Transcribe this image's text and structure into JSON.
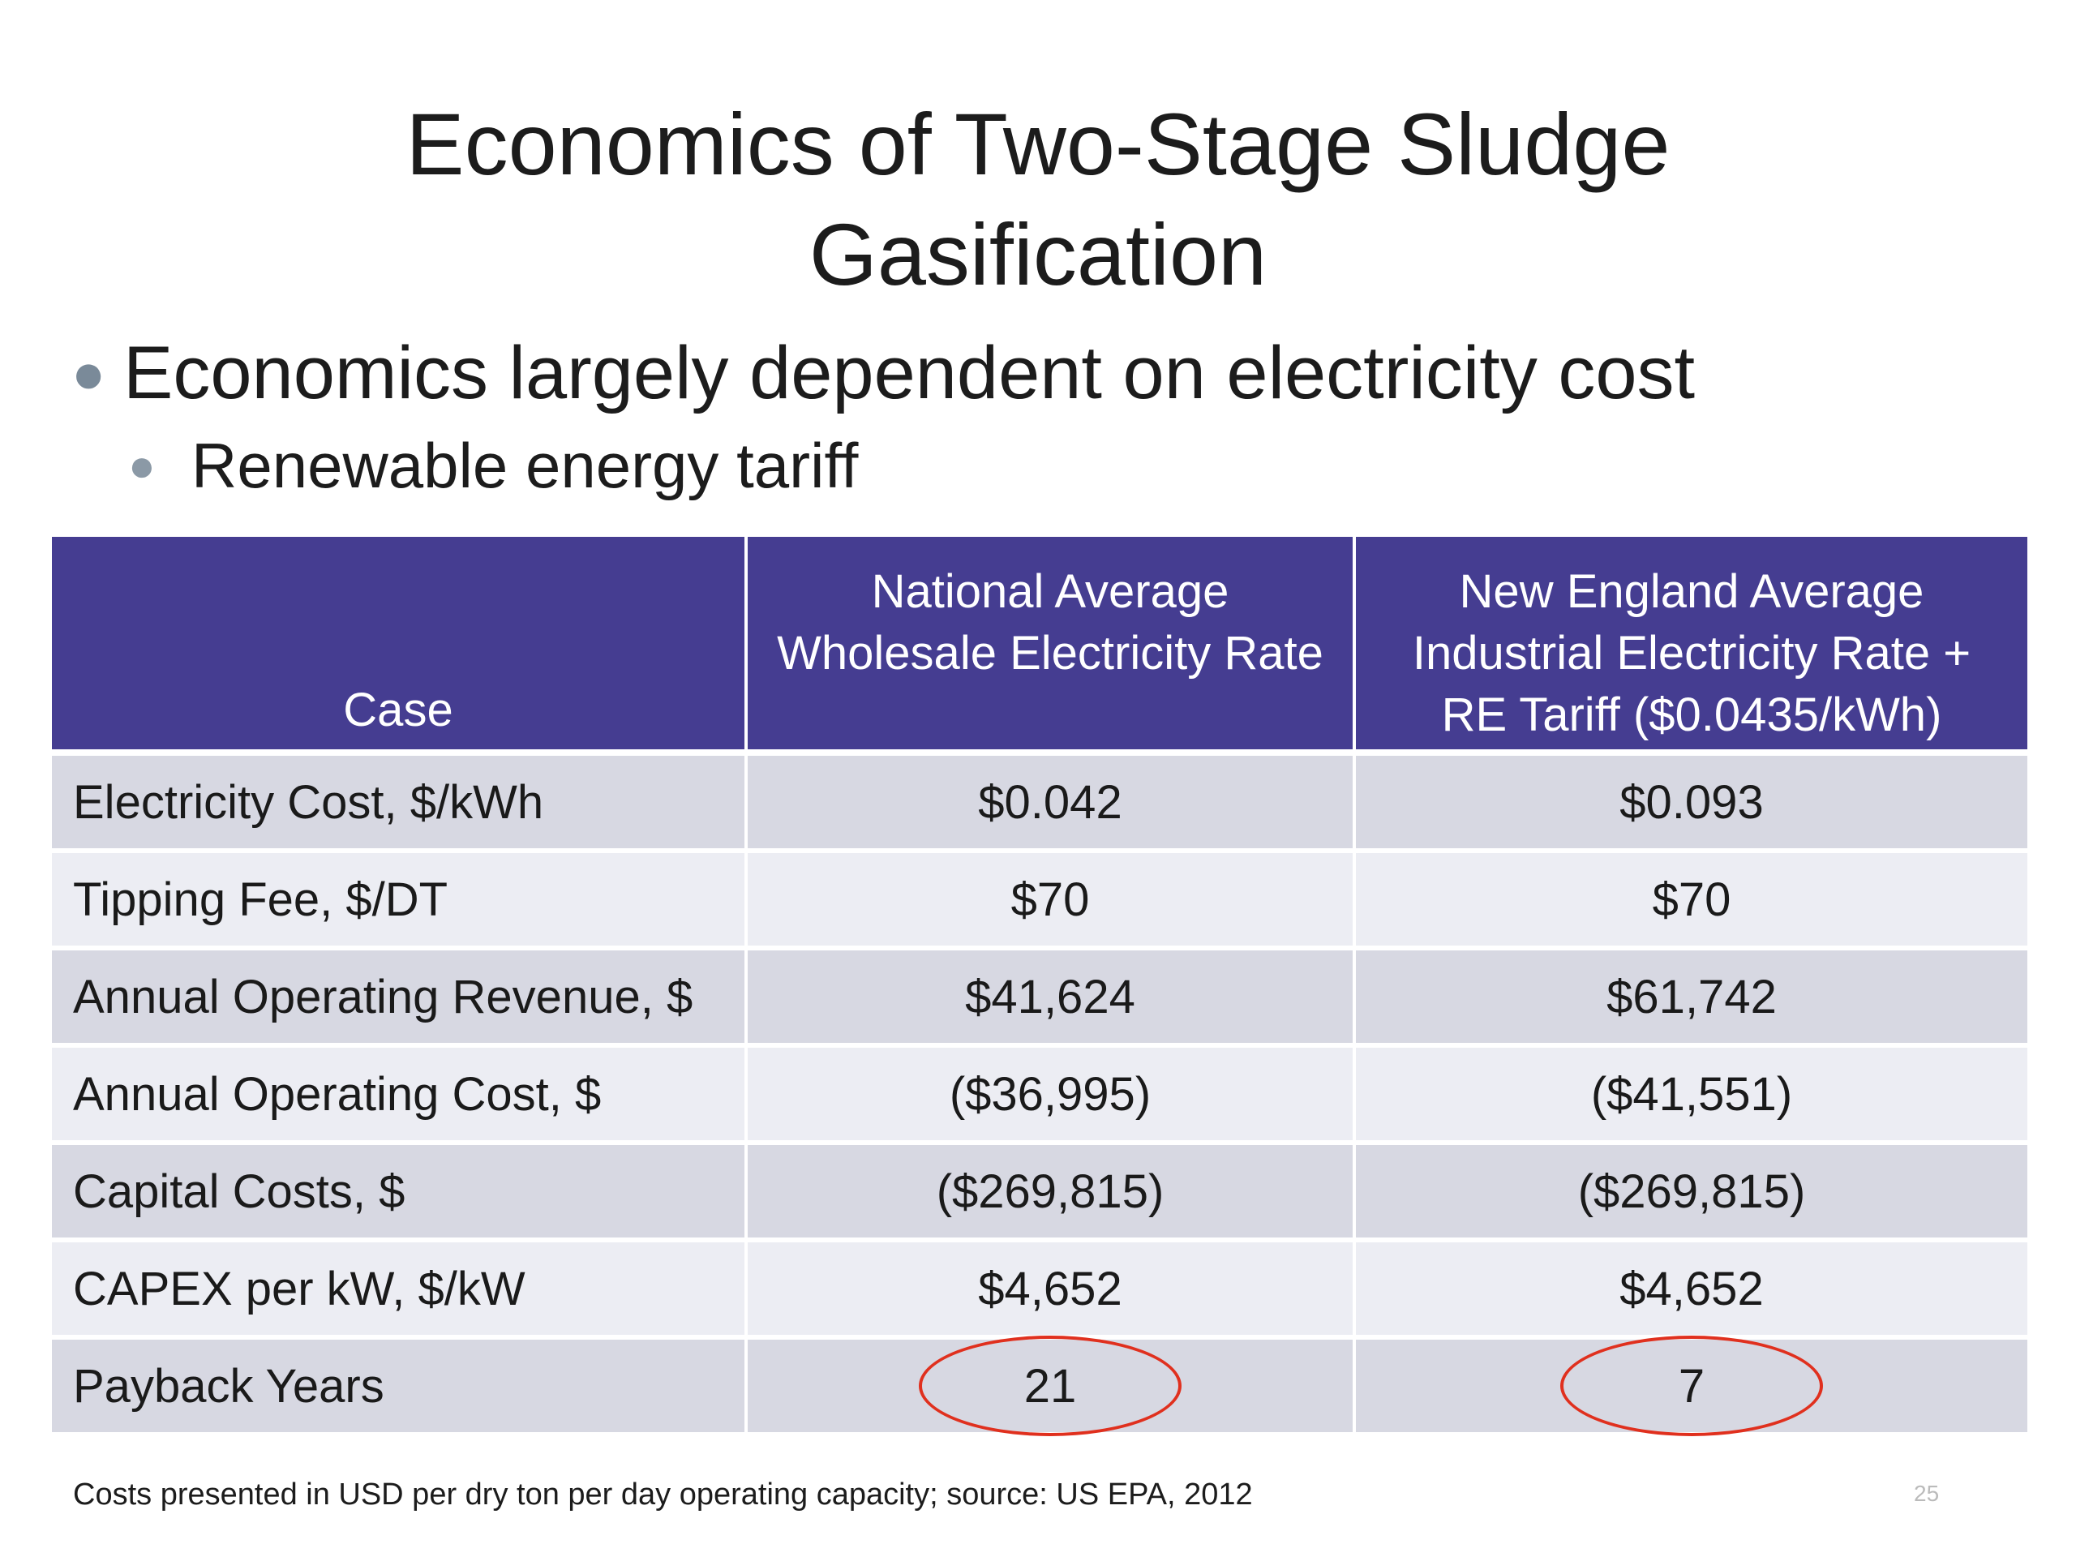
{
  "slide": {
    "title_line1": "Economics of Two-Stage Sludge",
    "title_line2": "Gasification",
    "bullets": [
      {
        "text": "Economics largely dependent on electricity cost"
      },
      {
        "text": "Renewable energy tariff"
      }
    ],
    "table": {
      "headers": [
        {
          "lines": [
            "Case"
          ]
        },
        {
          "lines": [
            "National Average",
            "Wholesale Electricity Rate"
          ]
        },
        {
          "lines": [
            "New England Average",
            "Industrial Electricity Rate +",
            "RE Tariff ($0.0435/kWh)"
          ]
        }
      ],
      "rows": [
        {
          "label": "Electricity Cost, $/kWh",
          "v1": "$0.042",
          "v2": "$0.093"
        },
        {
          "label": "Tipping Fee, $/DT",
          "v1": "$70",
          "v2": "$70"
        },
        {
          "label": "Annual Operating Revenue, $",
          "v1": "$41,624",
          "v2": "$61,742"
        },
        {
          "label": "Annual Operating Cost, $",
          "v1": "($36,995)",
          "v2": "($41,551)"
        },
        {
          "label": "Capital Costs, $",
          "v1": "($269,815)",
          "v2": "($269,815)"
        },
        {
          "label": "CAPEX per kW, $/kW",
          "v1": "$4,652",
          "v2": "$4,652"
        },
        {
          "label": "Payback Years",
          "v1": "21",
          "v2": "7"
        }
      ],
      "header_color": "#453d91",
      "highlight_color": "#e0301e"
    },
    "footnote": "Costs presented in USD per dry ton per day operating capacity; source: US EPA, 2012",
    "page_number": "25"
  }
}
